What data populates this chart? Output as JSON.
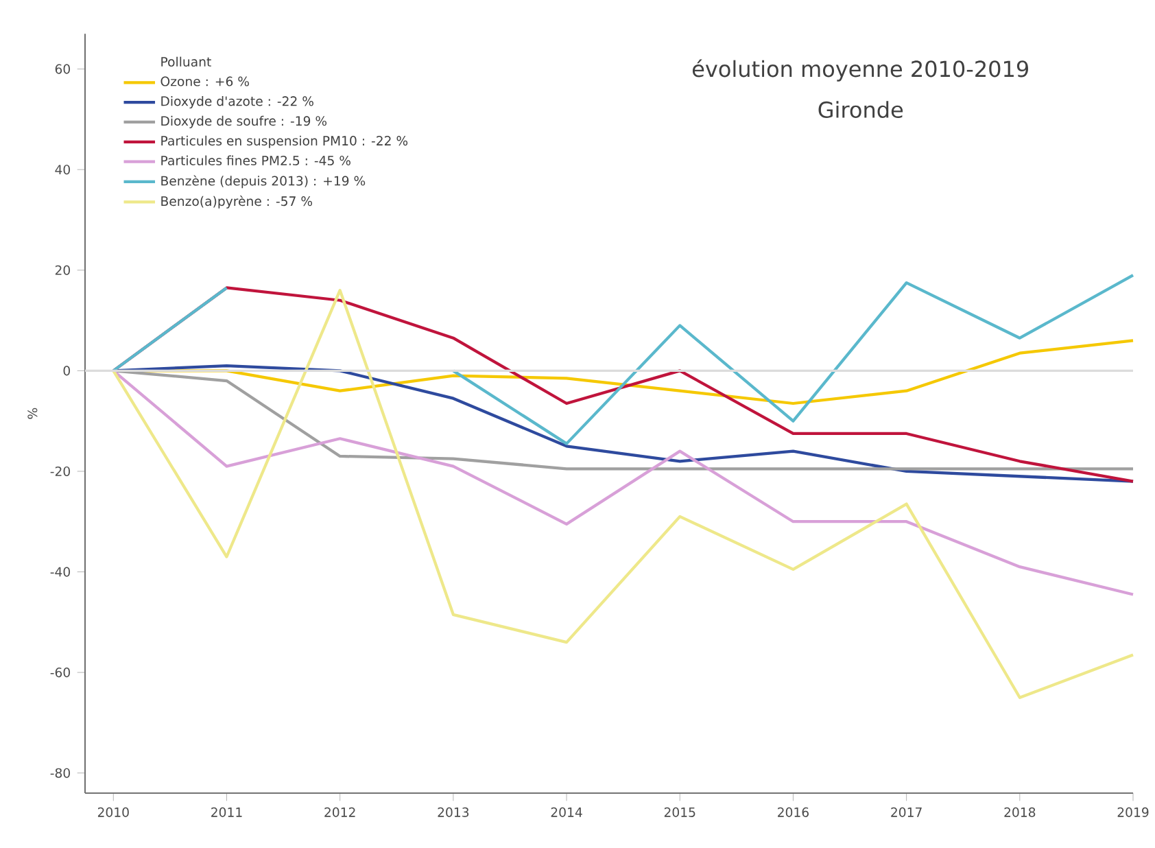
{
  "chart_data": {
    "type": "line",
    "title": "évolution moyenne 2010-2019",
    "subtitle": "Gironde",
    "ylabel": "%",
    "legend_title": "Polluant",
    "legend": "top left",
    "grid": false,
    "x": [
      2010,
      2011,
      2012,
      2013,
      2014,
      2015,
      2016,
      2017,
      2018,
      2019
    ],
    "xlim": [
      2009.75,
      2019
    ],
    "ylim": [
      -84,
      67
    ],
    "xticks": [
      2010,
      2011,
      2012,
      2013,
      2014,
      2015,
      2016,
      2017,
      2018,
      2019
    ],
    "yticks": [
      -80,
      -60,
      -40,
      -20,
      0,
      20,
      40,
      60
    ],
    "ref_lines": [
      {
        "axis": "y",
        "value": 0,
        "color": "#dcdcdc"
      }
    ],
    "series": [
      {
        "name": "Ozone : +6 %",
        "color": "#f5c800",
        "values": [
          0,
          0,
          -4,
          -1,
          -1.5,
          -4,
          -6.5,
          -4,
          3.5,
          6
        ]
      },
      {
        "name": "Dioxyde d'azote : -22 %",
        "color": "#2e4a9e",
        "values": [
          0,
          1,
          0,
          -5.5,
          -15,
          -18,
          -16,
          -20,
          -21,
          -22
        ]
      },
      {
        "name": "Dioxyde de soufre : -19 %",
        "color": "#a0a0a0",
        "values": [
          0,
          -2,
          -17,
          -17.5,
          -19.5,
          -19.5,
          -19.5,
          -19.5,
          -19.5,
          -19.5
        ]
      },
      {
        "name": "Particules en suspension PM10 : -22 %",
        "color": "#c0143c",
        "values": [
          0,
          16.5,
          14,
          6.5,
          -6.5,
          0,
          -12.5,
          -12.5,
          -18,
          -22
        ]
      },
      {
        "name": "Particules fines PM2.5 : -45 %",
        "color": "#d8a0d8",
        "values": [
          0,
          -19,
          -13.5,
          -19,
          -30.5,
          -16,
          -30,
          -30,
          -39,
          -44.5
        ]
      },
      {
        "name": "Benzène (depuis 2013) : +19 %",
        "color": "#5ab8cc",
        "values": [
          0,
          16.5,
          null,
          0,
          -14.5,
          9,
          -10,
          17.5,
          6.5,
          19
        ]
      },
      {
        "name": "Benzo(a)pyrène : -57 %",
        "color": "#eee88a",
        "values": [
          0,
          -37,
          16,
          -48.5,
          -54,
          -29,
          -39.5,
          -26.5,
          -65,
          -56.5
        ]
      }
    ]
  }
}
